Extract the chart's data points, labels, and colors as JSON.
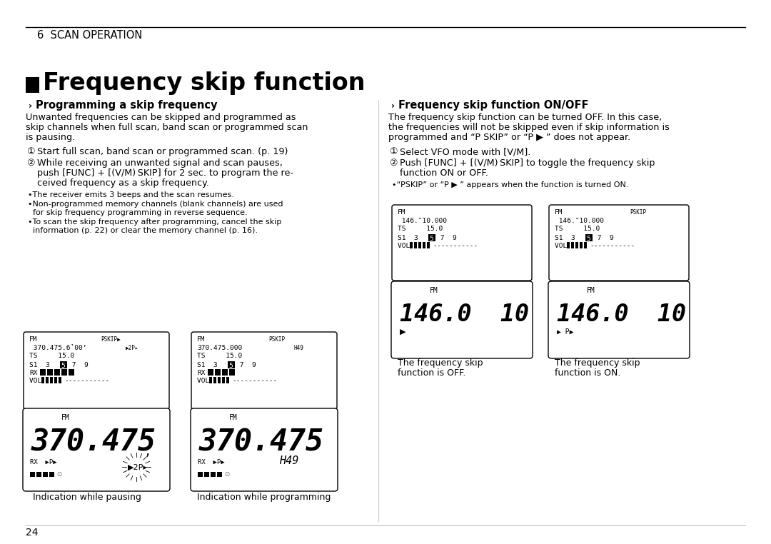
{
  "bg_color": "#ffffff",
  "text_color": "#000000",
  "page_number": "24",
  "chapter": "6  SCAN OPERATION",
  "title": "Frequency skip function",
  "section1_title": "Programming a skip frequency",
  "section1_body_lines": [
    "Unwanted frequencies can be skipped and programmed as",
    "skip channels when full scan, band scan or programmed scan",
    "is pausing."
  ],
  "section1_step1": "Start full scan, band scan or programmed scan. (p. 19)",
  "section1_step2_lines": [
    "While receiving an unwanted signal and scan pauses,",
    "push [FUNC] + [(V/M) SKIP] for 2 sec. to program the re-",
    "ceived frequency as a skip frequency."
  ],
  "section1_bullet1": "The receiver emits 3 beeps and the scan resumes.",
  "section1_bullet2_lines": [
    "Non-programmed memory channels (blank channels) are used",
    "for skip frequency programming in reverse sequence."
  ],
  "section1_bullet3_lines": [
    "To scan the skip frequency after programming, cancel the skip",
    "information (p. 22) or clear the memory channel (p. 16)."
  ],
  "section2_title": "Frequency skip function ON/OFF",
  "section2_body_lines": [
    "The frequency skip function can be turned OFF. In this case,",
    "the frequencies will not be skipped even if skip information is",
    "programmed and “P SKIP” or “P ▶ ” does not appear."
  ],
  "section2_step1": "Select VFO mode with [V/M].",
  "section2_step2_lines": [
    "Push [FUNC] + [(V/M) SKIP] to toggle the frequency skip",
    "function ON or OFF."
  ],
  "section2_bullet": "•“PSKIP” or “P ▶ ” appears when the function is turned ON.",
  "caption1": "Indication while pausing",
  "caption2": "Indication while programming",
  "caption3_lines": [
    "The frequency skip",
    "function is OFF."
  ],
  "caption4_lines": [
    "The frequency skip",
    "function is ON."
  ]
}
